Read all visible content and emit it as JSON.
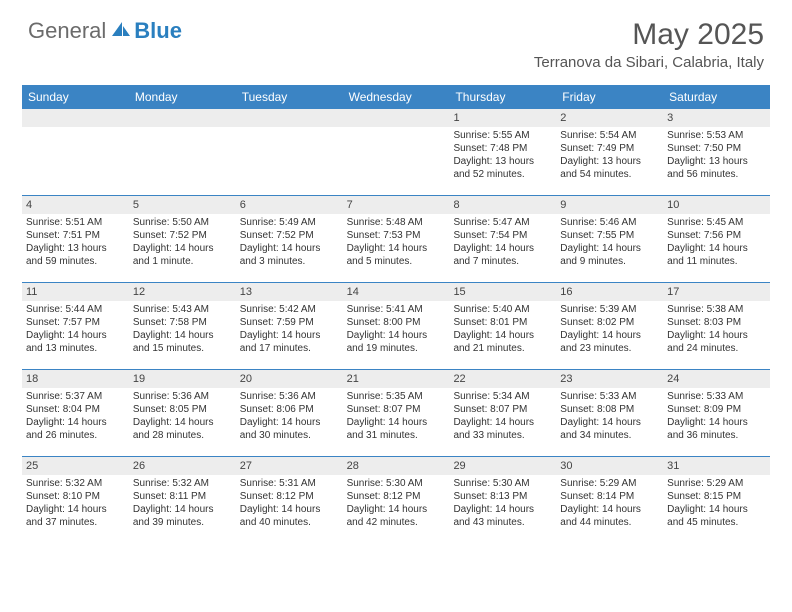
{
  "brand": {
    "general": "General",
    "blue": "Blue"
  },
  "title": "May 2025",
  "location": "Terranova da Sibari, Calabria, Italy",
  "colors": {
    "header_bg": "#3b84c4",
    "header_text": "#ffffff",
    "daynum_bg": "#ededed",
    "divider": "#3b84c4",
    "logo_gray": "#6b6b6b",
    "logo_blue": "#2a7fbf"
  },
  "day_names": [
    "Sunday",
    "Monday",
    "Tuesday",
    "Wednesday",
    "Thursday",
    "Friday",
    "Saturday"
  ],
  "weeks": [
    [
      {
        "n": "",
        "sr": "",
        "ss": "",
        "d1": "",
        "d2": ""
      },
      {
        "n": "",
        "sr": "",
        "ss": "",
        "d1": "",
        "d2": ""
      },
      {
        "n": "",
        "sr": "",
        "ss": "",
        "d1": "",
        "d2": ""
      },
      {
        "n": "",
        "sr": "",
        "ss": "",
        "d1": "",
        "d2": ""
      },
      {
        "n": "1",
        "sr": "Sunrise: 5:55 AM",
        "ss": "Sunset: 7:48 PM",
        "d1": "Daylight: 13 hours",
        "d2": "and 52 minutes."
      },
      {
        "n": "2",
        "sr": "Sunrise: 5:54 AM",
        "ss": "Sunset: 7:49 PM",
        "d1": "Daylight: 13 hours",
        "d2": "and 54 minutes."
      },
      {
        "n": "3",
        "sr": "Sunrise: 5:53 AM",
        "ss": "Sunset: 7:50 PM",
        "d1": "Daylight: 13 hours",
        "d2": "and 56 minutes."
      }
    ],
    [
      {
        "n": "4",
        "sr": "Sunrise: 5:51 AM",
        "ss": "Sunset: 7:51 PM",
        "d1": "Daylight: 13 hours",
        "d2": "and 59 minutes."
      },
      {
        "n": "5",
        "sr": "Sunrise: 5:50 AM",
        "ss": "Sunset: 7:52 PM",
        "d1": "Daylight: 14 hours",
        "d2": "and 1 minute."
      },
      {
        "n": "6",
        "sr": "Sunrise: 5:49 AM",
        "ss": "Sunset: 7:52 PM",
        "d1": "Daylight: 14 hours",
        "d2": "and 3 minutes."
      },
      {
        "n": "7",
        "sr": "Sunrise: 5:48 AM",
        "ss": "Sunset: 7:53 PM",
        "d1": "Daylight: 14 hours",
        "d2": "and 5 minutes."
      },
      {
        "n": "8",
        "sr": "Sunrise: 5:47 AM",
        "ss": "Sunset: 7:54 PM",
        "d1": "Daylight: 14 hours",
        "d2": "and 7 minutes."
      },
      {
        "n": "9",
        "sr": "Sunrise: 5:46 AM",
        "ss": "Sunset: 7:55 PM",
        "d1": "Daylight: 14 hours",
        "d2": "and 9 minutes."
      },
      {
        "n": "10",
        "sr": "Sunrise: 5:45 AM",
        "ss": "Sunset: 7:56 PM",
        "d1": "Daylight: 14 hours",
        "d2": "and 11 minutes."
      }
    ],
    [
      {
        "n": "11",
        "sr": "Sunrise: 5:44 AM",
        "ss": "Sunset: 7:57 PM",
        "d1": "Daylight: 14 hours",
        "d2": "and 13 minutes."
      },
      {
        "n": "12",
        "sr": "Sunrise: 5:43 AM",
        "ss": "Sunset: 7:58 PM",
        "d1": "Daylight: 14 hours",
        "d2": "and 15 minutes."
      },
      {
        "n": "13",
        "sr": "Sunrise: 5:42 AM",
        "ss": "Sunset: 7:59 PM",
        "d1": "Daylight: 14 hours",
        "d2": "and 17 minutes."
      },
      {
        "n": "14",
        "sr": "Sunrise: 5:41 AM",
        "ss": "Sunset: 8:00 PM",
        "d1": "Daylight: 14 hours",
        "d2": "and 19 minutes."
      },
      {
        "n": "15",
        "sr": "Sunrise: 5:40 AM",
        "ss": "Sunset: 8:01 PM",
        "d1": "Daylight: 14 hours",
        "d2": "and 21 minutes."
      },
      {
        "n": "16",
        "sr": "Sunrise: 5:39 AM",
        "ss": "Sunset: 8:02 PM",
        "d1": "Daylight: 14 hours",
        "d2": "and 23 minutes."
      },
      {
        "n": "17",
        "sr": "Sunrise: 5:38 AM",
        "ss": "Sunset: 8:03 PM",
        "d1": "Daylight: 14 hours",
        "d2": "and 24 minutes."
      }
    ],
    [
      {
        "n": "18",
        "sr": "Sunrise: 5:37 AM",
        "ss": "Sunset: 8:04 PM",
        "d1": "Daylight: 14 hours",
        "d2": "and 26 minutes."
      },
      {
        "n": "19",
        "sr": "Sunrise: 5:36 AM",
        "ss": "Sunset: 8:05 PM",
        "d1": "Daylight: 14 hours",
        "d2": "and 28 minutes."
      },
      {
        "n": "20",
        "sr": "Sunrise: 5:36 AM",
        "ss": "Sunset: 8:06 PM",
        "d1": "Daylight: 14 hours",
        "d2": "and 30 minutes."
      },
      {
        "n": "21",
        "sr": "Sunrise: 5:35 AM",
        "ss": "Sunset: 8:07 PM",
        "d1": "Daylight: 14 hours",
        "d2": "and 31 minutes."
      },
      {
        "n": "22",
        "sr": "Sunrise: 5:34 AM",
        "ss": "Sunset: 8:07 PM",
        "d1": "Daylight: 14 hours",
        "d2": "and 33 minutes."
      },
      {
        "n": "23",
        "sr": "Sunrise: 5:33 AM",
        "ss": "Sunset: 8:08 PM",
        "d1": "Daylight: 14 hours",
        "d2": "and 34 minutes."
      },
      {
        "n": "24",
        "sr": "Sunrise: 5:33 AM",
        "ss": "Sunset: 8:09 PM",
        "d1": "Daylight: 14 hours",
        "d2": "and 36 minutes."
      }
    ],
    [
      {
        "n": "25",
        "sr": "Sunrise: 5:32 AM",
        "ss": "Sunset: 8:10 PM",
        "d1": "Daylight: 14 hours",
        "d2": "and 37 minutes."
      },
      {
        "n": "26",
        "sr": "Sunrise: 5:32 AM",
        "ss": "Sunset: 8:11 PM",
        "d1": "Daylight: 14 hours",
        "d2": "and 39 minutes."
      },
      {
        "n": "27",
        "sr": "Sunrise: 5:31 AM",
        "ss": "Sunset: 8:12 PM",
        "d1": "Daylight: 14 hours",
        "d2": "and 40 minutes."
      },
      {
        "n": "28",
        "sr": "Sunrise: 5:30 AM",
        "ss": "Sunset: 8:12 PM",
        "d1": "Daylight: 14 hours",
        "d2": "and 42 minutes."
      },
      {
        "n": "29",
        "sr": "Sunrise: 5:30 AM",
        "ss": "Sunset: 8:13 PM",
        "d1": "Daylight: 14 hours",
        "d2": "and 43 minutes."
      },
      {
        "n": "30",
        "sr": "Sunrise: 5:29 AM",
        "ss": "Sunset: 8:14 PM",
        "d1": "Daylight: 14 hours",
        "d2": "and 44 minutes."
      },
      {
        "n": "31",
        "sr": "Sunrise: 5:29 AM",
        "ss": "Sunset: 8:15 PM",
        "d1": "Daylight: 14 hours",
        "d2": "and 45 minutes."
      }
    ]
  ]
}
